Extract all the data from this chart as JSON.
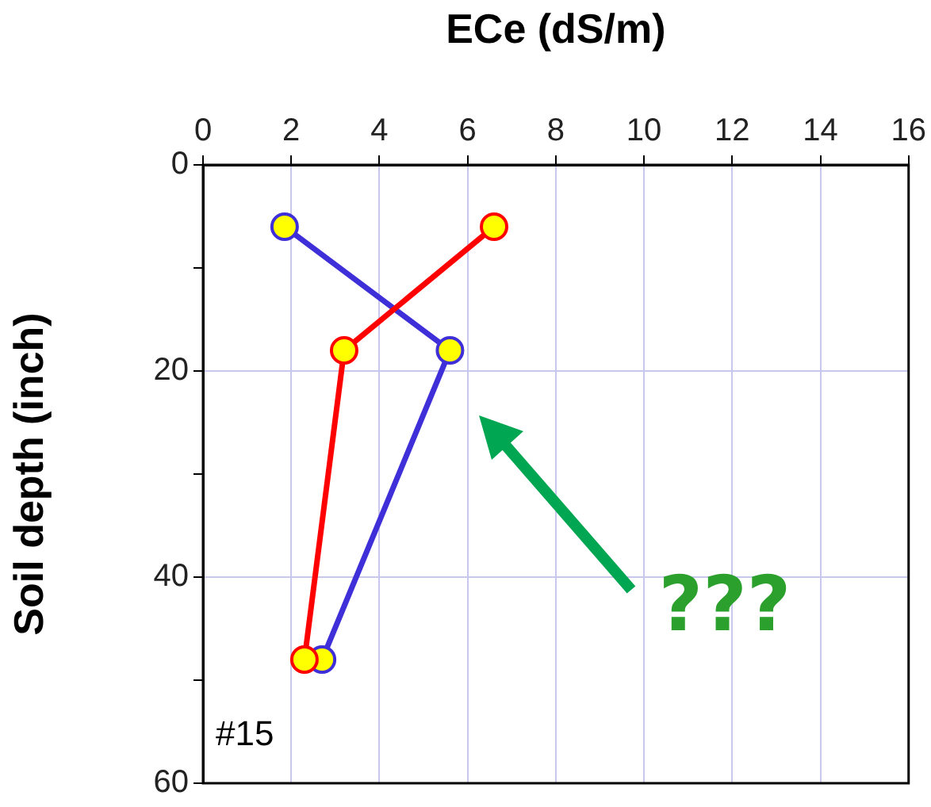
{
  "chart_data": {
    "type": "line",
    "xlabel": "ECe (dS/m)",
    "ylabel": "Soil depth (inch)",
    "xlim": [
      0,
      16
    ],
    "xticks": [
      0,
      2,
      4,
      6,
      8,
      10,
      12,
      14,
      16
    ],
    "ylim": [
      60,
      0
    ],
    "yticks": [
      0,
      {
        "value": 10,
        "label": null
      },
      20,
      {
        "value": 30,
        "label": null
      },
      40,
      {
        "value": 50,
        "label": null
      },
      60
    ],
    "grid": true,
    "marker": "circle",
    "line_style": "solid",
    "series": [
      {
        "color": "#ff0000",
        "x": [
          6.6,
          3.2,
          2.3
        ],
        "values": [
          6,
          18,
          48
        ]
      },
      {
        "color": "#3f2fd8",
        "x": [
          1.85,
          5.6,
          2.7
        ],
        "values": [
          6,
          18,
          48
        ]
      }
    ],
    "annotations": [
      "#15",
      "???"
    ]
  }
}
